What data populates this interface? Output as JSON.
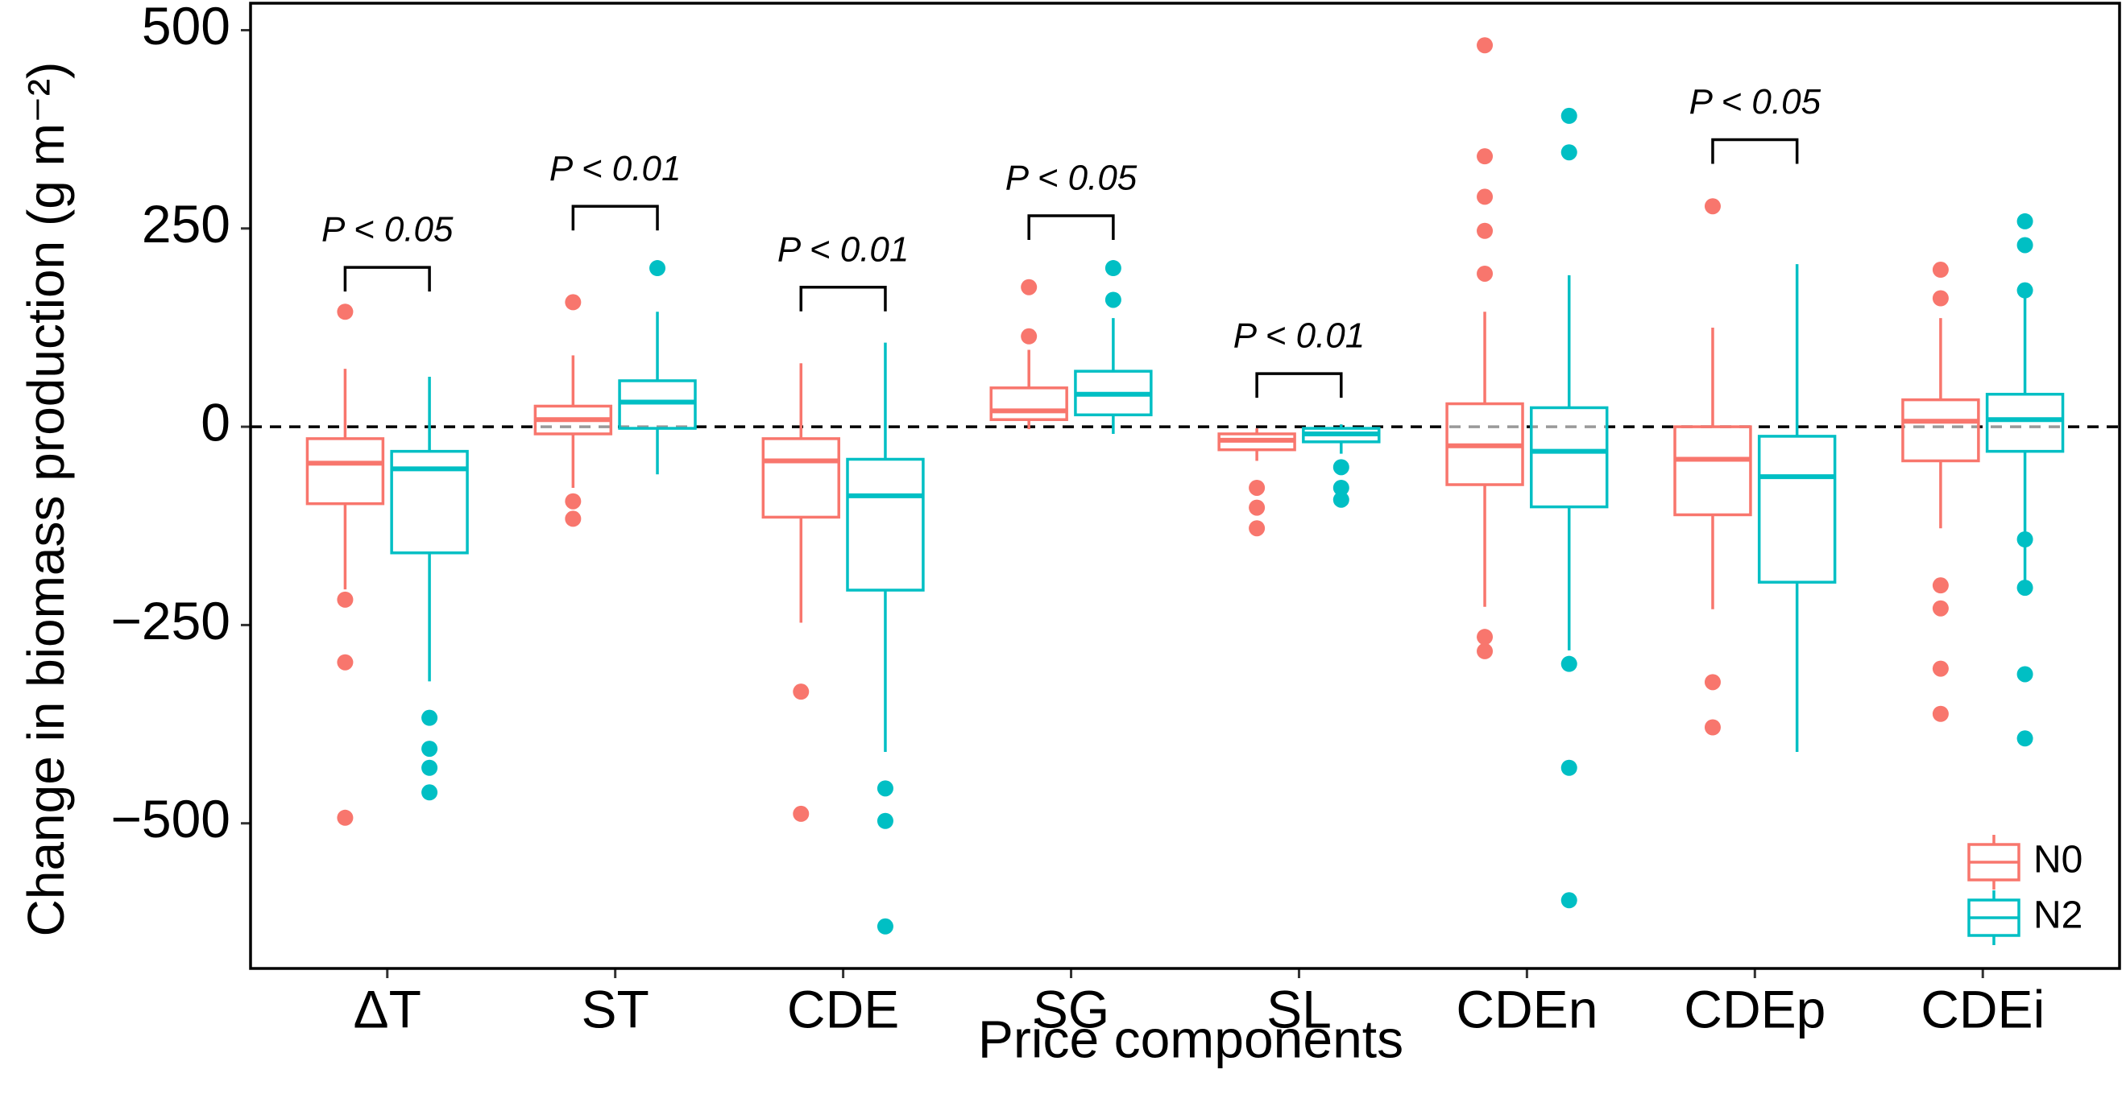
{
  "chart_data": {
    "type": "box",
    "x_label": "Price components",
    "y_label": "Change in biomass production (g m⁻²)",
    "categories": [
      "ΔT",
      "ST",
      "CDE",
      "SG",
      "SL",
      "CDEn",
      "CDEp",
      "CDEi"
    ],
    "ylim": [
      -683,
      534
    ],
    "yticks": [
      {
        "value": -500,
        "label": "−500"
      },
      {
        "value": -250,
        "label": "−250"
      },
      0,
      250,
      500
    ],
    "hline": 0,
    "legend_position": "bottom-right",
    "series": [
      {
        "name": "N0",
        "color": "#F8766D",
        "values": [
          {
            "low": -205,
            "q1": -97,
            "median": -46,
            "q3": -15,
            "high": 73,
            "outliers": [
              145,
              -218,
              -297,
              -493
            ]
          },
          {
            "low": -77,
            "q1": -9,
            "median": 9,
            "q3": 26,
            "high": 90,
            "outliers": [
              157,
              -94,
              -116
            ]
          },
          {
            "low": -247,
            "q1": -114,
            "median": -43,
            "q3": -15,
            "high": 80,
            "outliers": [
              -334,
              -488
            ]
          },
          {
            "low": -3,
            "q1": 9,
            "median": 20,
            "q3": 49,
            "high": 97,
            "outliers": [
              176,
              114
            ]
          },
          {
            "low": -43,
            "q1": -29,
            "median": -17,
            "q3": -9,
            "high": -2,
            "outliers": [
              -77,
              -102,
              -128
            ]
          },
          {
            "low": -227,
            "q1": -73,
            "median": -24,
            "q3": 29,
            "high": 145,
            "outliers": [
              481,
              341,
              290,
              247,
              193,
              -265,
              -283
            ]
          },
          {
            "low": -230,
            "q1": -111,
            "median": -41,
            "q3": 0,
            "high": 125,
            "outliers": [
              278,
              -322,
              -379
            ]
          },
          {
            "low": -128,
            "q1": -43,
            "median": 7,
            "q3": 34,
            "high": 137,
            "outliers": [
              198,
              162,
              -200,
              -229,
              -305,
              -362
            ]
          }
        ]
      },
      {
        "name": "N2",
        "color": "#00BFC4",
        "values": [
          {
            "low": -321,
            "q1": -159,
            "median": -53,
            "q3": -31,
            "high": 63,
            "outliers": [
              -367,
              -406,
              -430,
              -461
            ]
          },
          {
            "low": -60,
            "q1": -2,
            "median": 31,
            "q3": 58,
            "high": 145,
            "outliers": [
              200
            ]
          },
          {
            "low": -410,
            "q1": -206,
            "median": -87,
            "q3": -41,
            "high": 106,
            "outliers": [
              -456,
              -497,
              -630
            ]
          },
          {
            "low": -9,
            "q1": 15,
            "median": 41,
            "q3": 70,
            "high": 137,
            "outliers": [
              200,
              160
            ]
          },
          {
            "low": -34,
            "q1": -19,
            "median": -9,
            "q3": -2,
            "high": 3,
            "outliers": [
              -51,
              -77,
              -92
            ]
          },
          {
            "low": -282,
            "q1": -101,
            "median": -31,
            "q3": 24,
            "high": 191,
            "outliers": [
              392,
              346,
              -299,
              -430,
              -597
            ]
          },
          {
            "low": -410,
            "q1": -196,
            "median": -63,
            "q3": -12,
            "high": 205,
            "outliers": []
          },
          {
            "low": -196,
            "q1": -31,
            "median": 9,
            "q3": 41,
            "high": 171,
            "outliers": [
              259,
              229,
              172,
              -142,
              -203,
              -312,
              -393
            ]
          }
        ]
      }
    ],
    "annotations": [
      {
        "category": "ΔT",
        "text": "P < 0.05",
        "y": 201
      },
      {
        "category": "ST",
        "text": "P < 0.01",
        "y": 278
      },
      {
        "category": "CDE",
        "text": "P < 0.01",
        "y": 176
      },
      {
        "category": "SG",
        "text": "P < 0.05",
        "y": 266
      },
      {
        "category": "SL",
        "text": "P < 0.01",
        "y": 67
      },
      {
        "category": "CDEp",
        "text": "P < 0.05",
        "y": 362
      }
    ]
  }
}
